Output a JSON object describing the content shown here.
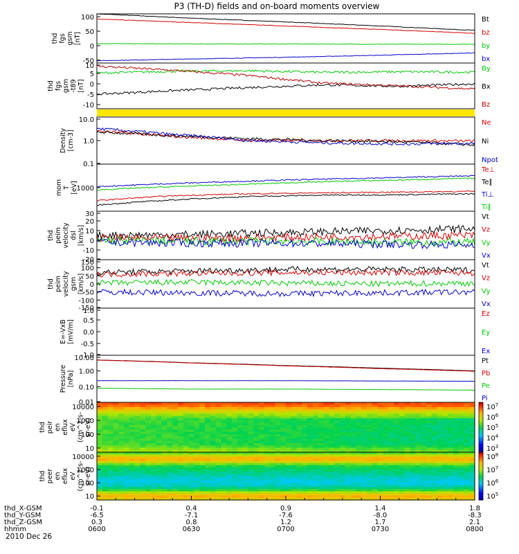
{
  "title": "P3 (TH-D) fields and on-board moments overview",
  "date": "2010 Dec 26",
  "xaxis": {
    "rows": [
      {
        "name": "thd_X-GSM",
        "values": [
          "-0.1",
          "0.4",
          "0.9",
          "1.4",
          "1.8"
        ]
      },
      {
        "name": "thd_Y-GSM",
        "values": [
          "-6.5",
          "-7.1",
          "-7.6",
          "-8.0",
          "-8.3"
        ]
      },
      {
        "name": "thd_Z-GSM",
        "values": [
          "0.3",
          "0.8",
          "1.2",
          "1.7",
          "2.1"
        ]
      },
      {
        "name": "hhmm",
        "values": [
          "0600",
          "0630",
          "0700",
          "0730",
          "0800"
        ]
      }
    ]
  },
  "colors": {
    "black": "#000000",
    "red": "#d40000",
    "green": "#00c800",
    "blue": "#0000c8",
    "darkred": "#b40000",
    "yellow": "#ffe600"
  },
  "chart_data": [
    {
      "type": "line",
      "ylabel": [
        "thd",
        "fgs",
        "gsm",
        "[nT]"
      ],
      "yticks": [
        "100",
        "50",
        "0",
        "-50"
      ],
      "ylim": [
        -60,
        110
      ],
      "x": [
        0,
        0.25,
        0.5,
        0.75,
        1
      ],
      "series": [
        {
          "name": "Bt",
          "color": "#000000",
          "values": [
            110,
            95,
            82,
            68,
            53
          ]
        },
        {
          "name": "bz",
          "color": "#d40000",
          "values": [
            92,
            80,
            68,
            56,
            43
          ]
        },
        {
          "name": "by",
          "color": "#00c800",
          "values": [
            7,
            6,
            6,
            5,
            5
          ]
        },
        {
          "name": "bx",
          "color": "#0000c8",
          "values": [
            -52,
            -46,
            -40,
            -33,
            -25
          ]
        }
      ]
    },
    {
      "type": "line",
      "ylabel": [
        "thd",
        "fgs",
        "gsm",
        "-t89",
        "[nT]"
      ],
      "yticks": [
        "10",
        "5",
        "0",
        "-5",
        "-10"
      ],
      "ylim": [
        -12,
        10
      ],
      "x": [
        0,
        0.2,
        0.4,
        0.6,
        0.8,
        1
      ],
      "series": [
        {
          "name": "By",
          "color": "#00c800",
          "values": [
            5.2,
            6.0,
            6.3,
            5.5,
            5.8,
            5.6
          ]
        },
        {
          "name": "Bx",
          "color": "#000000",
          "values": [
            -5,
            -3.3,
            -1.8,
            -0.5,
            -1.2,
            0
          ]
        },
        {
          "name": "Bz",
          "color": "#b40000",
          "values": [
            8.5,
            6.5,
            4.0,
            0.3,
            -1.0,
            -2.5
          ]
        }
      ]
    },
    {
      "type": "line",
      "ylabel": [
        "Density",
        "[cm-3]"
      ],
      "yticks": [
        "10.0",
        "1.0",
        "0.1"
      ],
      "ylim": [
        0.1,
        10
      ],
      "scale": "log",
      "x": [
        0,
        0.2,
        0.4,
        0.6,
        0.8,
        1
      ],
      "series": [
        {
          "name": "Ne",
          "color": "#d40000",
          "values": [
            2.5,
            1.5,
            1.0,
            1.0,
            1.0,
            0.95
          ]
        },
        {
          "name": "Ni",
          "color": "#000000",
          "values": [
            2.3,
            1.6,
            1.2,
            1.0,
            0.9,
            0.65
          ]
        },
        {
          "name": "Npot",
          "color": "#0000c8",
          "values": [
            3.2,
            1.8,
            1.0,
            0.8,
            0.72,
            0.75
          ]
        }
      ]
    },
    {
      "type": "line",
      "ylabel": [
        "mom",
        "T",
        "[eV]"
      ],
      "yticks": [
        "1000"
      ],
      "ylim": [
        100,
        10000
      ],
      "scale": "log",
      "x": [
        0,
        0.2,
        0.4,
        0.6,
        0.8,
        1
      ],
      "series": [
        {
          "name": "Te⊥",
          "color": "#d40000",
          "values": [
            280,
            450,
            550,
            600,
            650,
            700
          ]
        },
        {
          "name": "Te∥",
          "color": "#000000",
          "values": [
            180,
            300,
            420,
            480,
            500,
            550
          ]
        },
        {
          "name": "Ti⊥",
          "color": "#0000c8",
          "values": [
            1100,
            1500,
            1900,
            2300,
            2700,
            3200
          ]
        },
        {
          "name": "Ti∥",
          "color": "#00c800",
          "values": [
            800,
            1100,
            1400,
            1800,
            2100,
            2500
          ]
        }
      ]
    },
    {
      "type": "line",
      "ylabel": [
        "thd",
        "peim",
        "velocity",
        "dsl",
        "[km/s]"
      ],
      "yticks": [
        "30",
        "20",
        "10",
        "0",
        "-10",
        "-20"
      ],
      "ylim": [
        -20,
        30
      ],
      "x": [
        0,
        0.25,
        0.5,
        0.75,
        1
      ],
      "series": [
        {
          "name": "Vt",
          "color": "#000000",
          "values": [
            5,
            6,
            8,
            10,
            12
          ]
        },
        {
          "name": "Vz",
          "color": "#d40000",
          "values": [
            2,
            2,
            3,
            4,
            5
          ]
        },
        {
          "name": "Vy",
          "color": "#00c800",
          "values": [
            0,
            -1,
            -1,
            -2,
            -2
          ]
        },
        {
          "name": "Vx",
          "color": "#0000c8",
          "values": [
            -2,
            -3,
            -3,
            -4,
            -5
          ]
        }
      ]
    },
    {
      "type": "line",
      "ylabel": [
        "thd",
        "peim",
        "velocity",
        "gsm",
        "[km/s]"
      ],
      "yticks": [
        "150",
        "100",
        "50",
        "0",
        "-50",
        "-100",
        "-150"
      ],
      "ylim": [
        -150,
        150
      ],
      "x": [
        0,
        0.25,
        0.5,
        0.75,
        1
      ],
      "series": [
        {
          "name": "Vt",
          "color": "#000000",
          "values": [
            70,
            80,
            90,
            90,
            85
          ]
        },
        {
          "name": "Vz",
          "color": "#d40000",
          "values": [
            60,
            65,
            70,
            70,
            68
          ]
        },
        {
          "name": "Vy",
          "color": "#00c800",
          "values": [
            5,
            10,
            5,
            0,
            5
          ]
        },
        {
          "name": "Vx",
          "color": "#0000c8",
          "values": [
            -50,
            -55,
            -60,
            -55,
            -50
          ]
        }
      ]
    },
    {
      "type": "line",
      "ylabel": [
        "E=-VxB",
        "[mV/m]"
      ],
      "yticks": [
        "1.0",
        "0.5",
        "0.0",
        "-0.5",
        "-1.0"
      ],
      "ylim": [
        -1,
        1
      ],
      "x": [],
      "series": [
        {
          "name": "Ez",
          "color": "#d40000",
          "values": []
        },
        {
          "name": "Ey",
          "color": "#00c800",
          "values": []
        },
        {
          "name": "Ex",
          "color": "#0000c8",
          "values": []
        }
      ]
    },
    {
      "type": "line",
      "ylabel": [
        "Pressure",
        "[nPa]"
      ],
      "yticks": [
        "10.00",
        "1.00",
        "0.10",
        "0.01"
      ],
      "ylim": [
        0.01,
        10
      ],
      "scale": "log",
      "x": [
        0,
        0.25,
        0.5,
        0.75,
        1
      ],
      "series": [
        {
          "name": "Pt",
          "color": "#000000",
          "values": [
            5,
            3.3,
            2.2,
            1.5,
            1.0
          ]
        },
        {
          "name": "Pb",
          "color": "#d40000",
          "values": [
            4.9,
            3.2,
            2.1,
            1.4,
            0.95
          ]
        },
        {
          "name": "Pe",
          "color": "#00c800",
          "values": [
            0.08,
            0.07,
            0.07,
            0.065,
            0.06
          ]
        },
        {
          "name": "Pi",
          "color": "#0000c8",
          "values": [
            0.24,
            0.24,
            0.24,
            0.23,
            0.22
          ]
        }
      ]
    },
    {
      "type": "heatmap",
      "ylabel": [
        "thd",
        "peir",
        "en",
        "eflux",
        "eV",
        "(cm^2-s-",
        "sr-eV)"
      ],
      "yticks": [
        "10000",
        "1000",
        "100",
        "10"
      ],
      "ylim": [
        5,
        20000
      ],
      "scale": "log",
      "colorbar": {
        "ticks": [
          "10^7",
          "10^6",
          "10^5",
          "10^4",
          "10^3"
        ],
        "range_exp": [
          2.6,
          7.2
        ]
      }
    },
    {
      "type": "heatmap",
      "ylabel": [
        "thd",
        "peer",
        "en",
        "eflux",
        "eV",
        "(cm^2-s-",
        "sr-eV)"
      ],
      "yticks": [
        "10000",
        "1000",
        "100",
        "10"
      ],
      "ylim": [
        5,
        20000
      ],
      "scale": "log",
      "colorbar": {
        "ticks": [
          "10^8",
          "10^7",
          "10^6",
          "10^5"
        ],
        "range_exp": [
          4.8,
          8.3
        ]
      }
    }
  ]
}
